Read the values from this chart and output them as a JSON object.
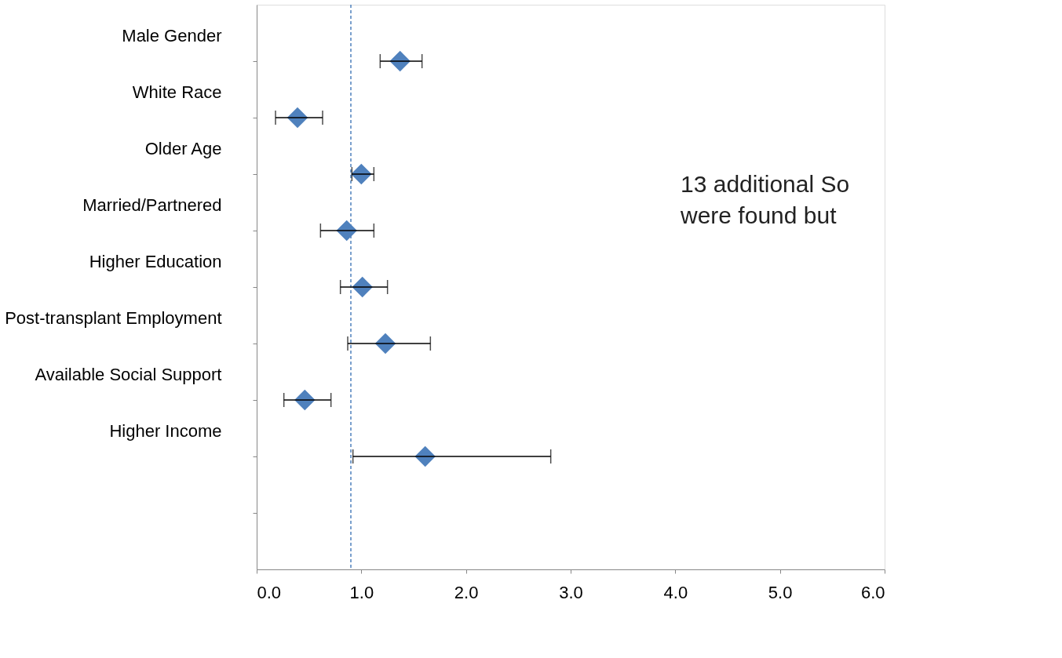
{
  "chart_data": {
    "type": "scatter",
    "orientation": "horizontal",
    "categories": [
      "Male Gender",
      "White Race",
      "Older Age",
      "Married/Partnered",
      "Higher Education",
      "Post-transplant Employment",
      "Available Social Support",
      "Higher Income",
      null
    ],
    "values": [
      1.37,
      0.39,
      1.0,
      0.86,
      1.01,
      1.23,
      0.46,
      1.61,
      null
    ],
    "errors": [
      [
        1.18,
        1.58
      ],
      [
        0.18,
        0.63
      ],
      [
        0.91,
        1.12
      ],
      [
        0.61,
        1.12
      ],
      [
        0.8,
        1.25
      ],
      [
        0.87,
        1.66
      ],
      [
        0.26,
        0.71
      ],
      [
        0.92,
        2.81
      ],
      null
    ],
    "color": "#4f81bd",
    "marker": "diamond",
    "grid": false,
    "xlim": [
      0,
      6
    ],
    "xticks": [
      {
        "value": 0,
        "label": "0.0"
      },
      {
        "value": 1,
        "label": "1.0"
      },
      {
        "value": 2,
        "label": "2.0"
      },
      {
        "value": 3,
        "label": "3.0"
      },
      {
        "value": 4,
        "label": "4.0"
      },
      {
        "value": 5,
        "label": "5.0"
      },
      {
        "value": 6,
        "label": "6.0"
      }
    ],
    "ref_lines": [
      {
        "axis": "x",
        "value": 0.9,
        "color": "#4f81bd",
        "line_style": "dashed"
      }
    ],
    "annotations": [
      "13 additional So",
      "were found but"
    ]
  }
}
